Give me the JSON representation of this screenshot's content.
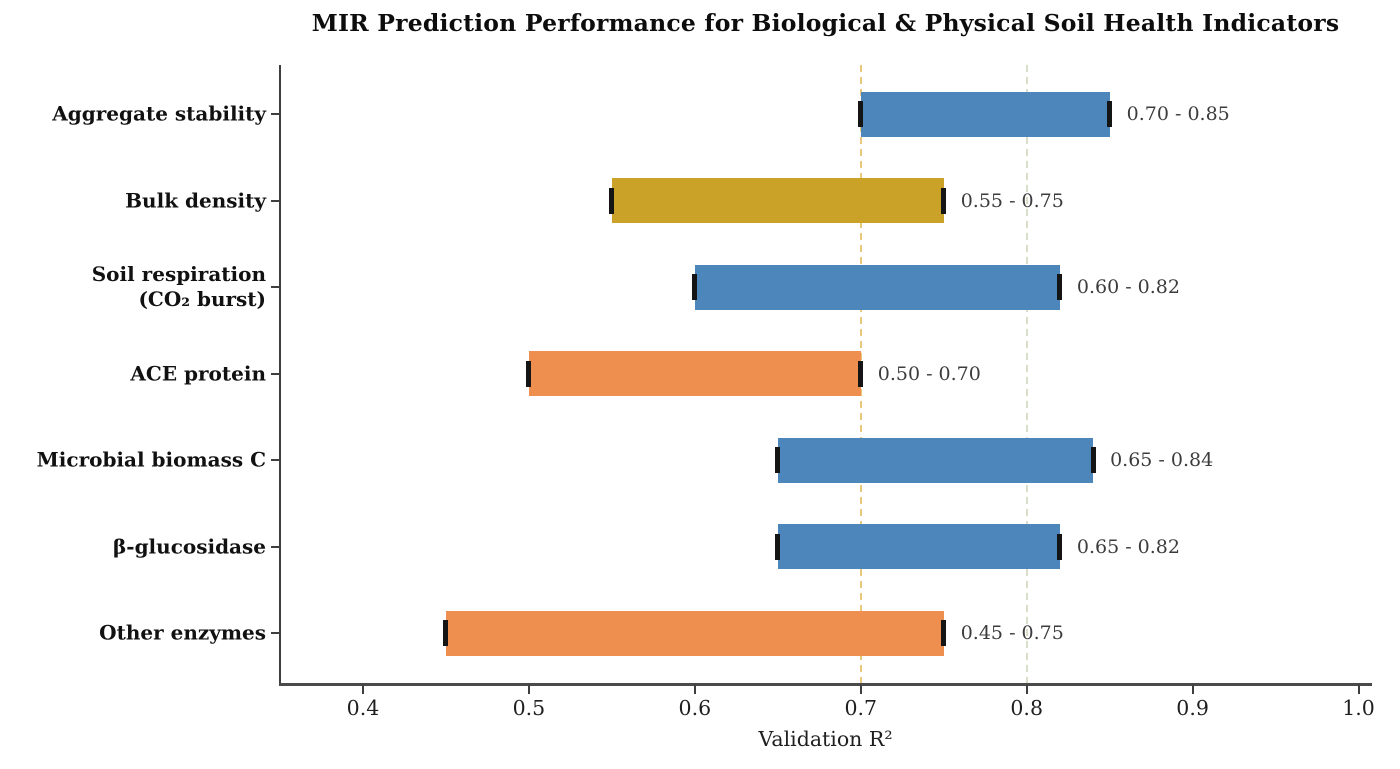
{
  "chart_data": {
    "type": "bar",
    "orientation": "horizontal-range",
    "title": "MIR Prediction Performance for Biological & Physical Soil Health Indicators",
    "xlabel": "Validation R²",
    "xlim": [
      0.35,
      1.0075
    ],
    "xticks": [
      0.4,
      0.5,
      0.6,
      0.7,
      0.8,
      0.9,
      1.0
    ],
    "xtick_labels": [
      "0.4",
      "0.5",
      "0.6",
      "0.7",
      "0.8",
      "0.9",
      "1.0"
    ],
    "legend": "none",
    "grid": "vertical dashed reference lines only",
    "reference_lines": [
      {
        "x": 0.7,
        "style": "dashed",
        "color": "#e9c77d"
      },
      {
        "x": 0.8,
        "style": "dashed",
        "color": "#d7dfcb"
      }
    ],
    "bars": [
      {
        "category": "Aggregate stability",
        "low": 0.7,
        "high": 0.85,
        "range_label": "0.70 - 0.85",
        "color": "#4c86bb"
      },
      {
        "category": "Bulk density",
        "low": 0.55,
        "high": 0.75,
        "range_label": "0.55 - 0.75",
        "color": "#c9a227"
      },
      {
        "category": "Soil respiration\n(CO₂ burst)",
        "low": 0.6,
        "high": 0.82,
        "range_label": "0.60 - 0.82",
        "color": "#4c86bb"
      },
      {
        "category": "ACE protein",
        "low": 0.5,
        "high": 0.7,
        "range_label": "0.50 - 0.70",
        "color": "#ee8f4f"
      },
      {
        "category": "Microbial biomass C",
        "low": 0.65,
        "high": 0.84,
        "range_label": "0.65 - 0.84",
        "color": "#4c86bb"
      },
      {
        "category": "β-glucosidase",
        "low": 0.65,
        "high": 0.82,
        "range_label": "0.65 - 0.82",
        "color": "#4c86bb"
      },
      {
        "category": "Other enzymes",
        "low": 0.45,
        "high": 0.75,
        "range_label": "0.45 - 0.75",
        "color": "#ee8f4f"
      }
    ],
    "colors": {
      "bar_blue": "#4c86bb",
      "bar_gold": "#c9a227",
      "bar_orange": "#ee8f4f",
      "errorbar_cap": "#151515",
      "value_label": "#3c3c3c",
      "axis": "#3f3f3f",
      "tick_label": "#1f1f1f",
      "title": "#0d0d0d",
      "background": "#ffffff"
    }
  }
}
